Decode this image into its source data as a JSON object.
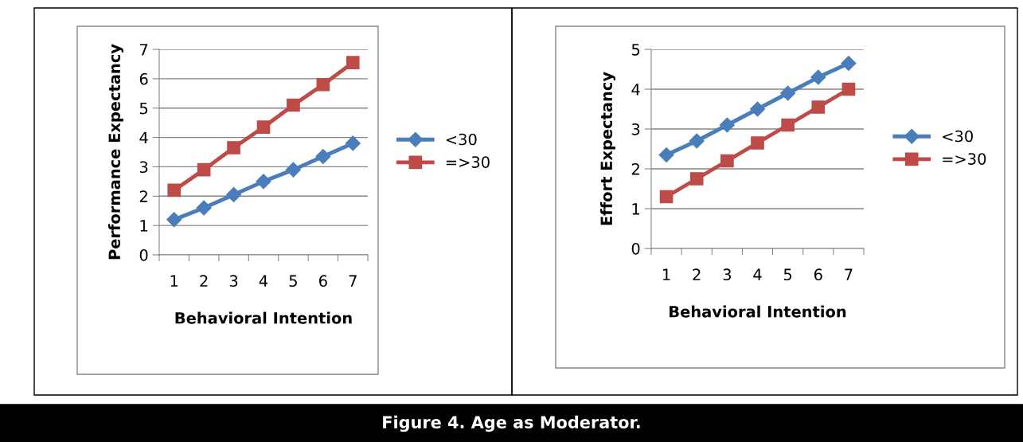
{
  "chart_data": [
    {
      "type": "line",
      "xlabel": "Behavioral Intention",
      "ylabel": "Performance Expectancy",
      "categories": [
        "1",
        "2",
        "3",
        "4",
        "5",
        "6",
        "7"
      ],
      "ylim": [
        0,
        7
      ],
      "yticks": [
        0,
        1,
        2,
        3,
        4,
        5,
        6,
        7
      ],
      "grid": "y",
      "legend": "right",
      "series": [
        {
          "name": "<30",
          "color": "#4a7ebb",
          "marker": "diamond",
          "values": [
            1.2,
            1.6,
            2.05,
            2.5,
            2.9,
            3.35,
            3.8
          ]
        },
        {
          "name": "=>30",
          "color": "#be4b48",
          "marker": "square",
          "values": [
            2.2,
            2.9,
            3.65,
            4.35,
            5.1,
            5.8,
            6.55
          ]
        }
      ],
      "annotations": [
        "Figure 4. Age as Moderator."
      ]
    },
    {
      "type": "line",
      "xlabel": "Behavioral Intention",
      "ylabel": "Effort Expectancy",
      "categories": [
        "1",
        "2",
        "3",
        "4",
        "5",
        "6",
        "7"
      ],
      "ylim": [
        0,
        5
      ],
      "yticks": [
        0,
        1,
        2,
        3,
        4,
        5
      ],
      "grid": "y",
      "legend": "right",
      "series": [
        {
          "name": "<30",
          "color": "#4a7ebb",
          "marker": "diamond",
          "values": [
            2.35,
            2.7,
            3.1,
            3.5,
            3.9,
            4.3,
            4.65
          ]
        },
        {
          "name": "=>30",
          "color": "#be4b48",
          "marker": "square",
          "values": [
            1.3,
            1.75,
            2.2,
            2.65,
            3.1,
            3.55,
            4.0
          ]
        }
      ]
    }
  ]
}
